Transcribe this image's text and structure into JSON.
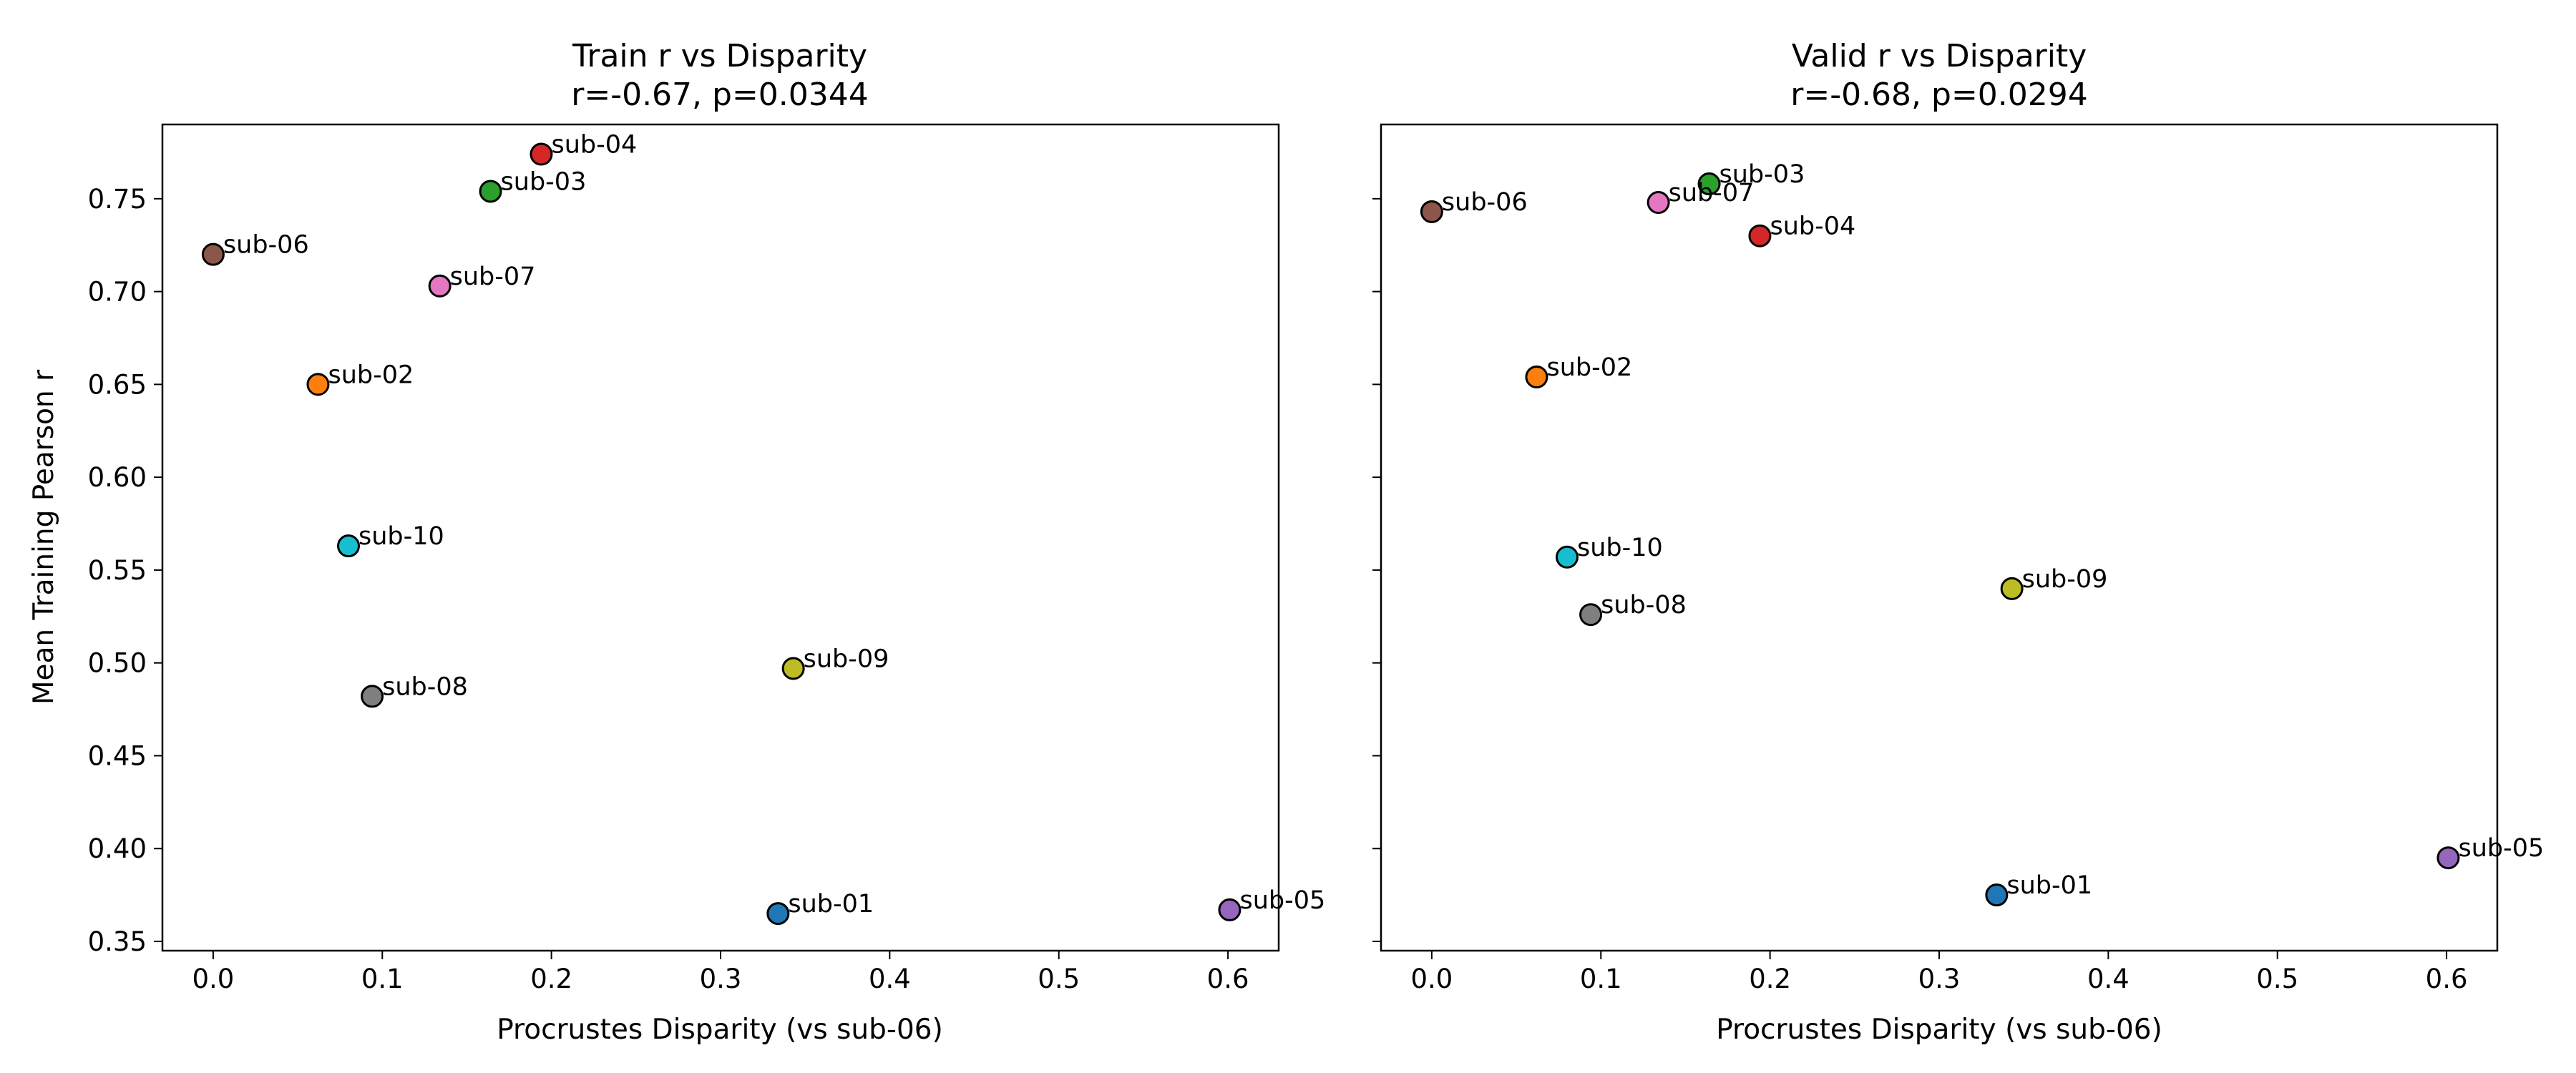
{
  "chart_data": [
    {
      "type": "scatter",
      "title": "Train r vs Disparity",
      "subtitle": "r=-0.67, p=0.0344",
      "xlabel": "Procrustes Disparity (vs sub-06)",
      "ylabel": "Mean Training Pearson r",
      "xlim": [
        -0.03,
        0.63
      ],
      "ylim": [
        0.345,
        0.79
      ],
      "xticks": [
        "0.0",
        "0.1",
        "0.2",
        "0.3",
        "0.4",
        "0.5",
        "0.6"
      ],
      "yticks": [
        "0.35",
        "0.40",
        "0.45",
        "0.50",
        "0.55",
        "0.60",
        "0.65",
        "0.70",
        "0.75"
      ],
      "grid": false,
      "points": [
        {
          "label": "sub-04",
          "x": 0.194,
          "y": 0.774,
          "color": "#d62728"
        },
        {
          "label": "sub-03",
          "x": 0.164,
          "y": 0.754,
          "color": "#2ca02c"
        },
        {
          "label": "sub-06",
          "x": 0.0,
          "y": 0.72,
          "color": "#8c564b"
        },
        {
          "label": "sub-07",
          "x": 0.134,
          "y": 0.703,
          "color": "#e377c2"
        },
        {
          "label": "sub-02",
          "x": 0.062,
          "y": 0.65,
          "color": "#ff7f0e"
        },
        {
          "label": "sub-10",
          "x": 0.08,
          "y": 0.563,
          "color": "#17becf"
        },
        {
          "label": "sub-09",
          "x": 0.343,
          "y": 0.497,
          "color": "#bcbd22"
        },
        {
          "label": "sub-08",
          "x": 0.094,
          "y": 0.482,
          "color": "#7f7f7f"
        },
        {
          "label": "sub-01",
          "x": 0.334,
          "y": 0.365,
          "color": "#1f77b4"
        },
        {
          "label": "sub-05",
          "x": 0.601,
          "y": 0.367,
          "color": "#9467bd"
        }
      ]
    },
    {
      "type": "scatter",
      "title": "Valid r vs Disparity",
      "subtitle": "r=-0.68, p=0.0294",
      "xlabel": "Procrustes Disparity (vs sub-06)",
      "ylabel": "",
      "xlim": [
        -0.03,
        0.63
      ],
      "ylim": [
        0.345,
        0.79
      ],
      "xticks": [
        "0.0",
        "0.1",
        "0.2",
        "0.3",
        "0.4",
        "0.5",
        "0.6"
      ],
      "yticks": [],
      "grid": false,
      "points": [
        {
          "label": "sub-03",
          "x": 0.164,
          "y": 0.758,
          "color": "#2ca02c"
        },
        {
          "label": "sub-07",
          "x": 0.134,
          "y": 0.748,
          "color": "#e377c2"
        },
        {
          "label": "sub-06",
          "x": 0.0,
          "y": 0.743,
          "color": "#8c564b"
        },
        {
          "label": "sub-04",
          "x": 0.194,
          "y": 0.73,
          "color": "#d62728"
        },
        {
          "label": "sub-02",
          "x": 0.062,
          "y": 0.654,
          "color": "#ff7f0e"
        },
        {
          "label": "sub-10",
          "x": 0.08,
          "y": 0.557,
          "color": "#17becf"
        },
        {
          "label": "sub-09",
          "x": 0.343,
          "y": 0.54,
          "color": "#bcbd22"
        },
        {
          "label": "sub-08",
          "x": 0.094,
          "y": 0.526,
          "color": "#7f7f7f"
        },
        {
          "label": "sub-05",
          "x": 0.601,
          "y": 0.395,
          "color": "#9467bd"
        },
        {
          "label": "sub-01",
          "x": 0.334,
          "y": 0.375,
          "color": "#1f77b4"
        }
      ]
    }
  ]
}
